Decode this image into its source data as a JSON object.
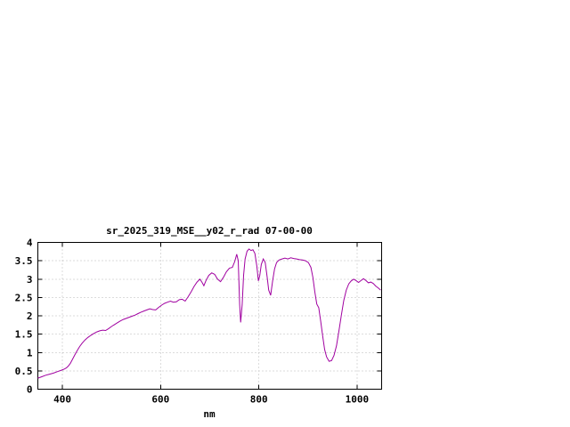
{
  "chart_data": {
    "type": "line",
    "title": "sr_2025_319_MSE__y02_r_rad 07-00-00",
    "xlabel": "nm",
    "ylabel": "",
    "xlim": [
      350,
      1050
    ],
    "ylim": [
      0,
      4
    ],
    "x_ticks": [
      400,
      600,
      800,
      1000
    ],
    "y_ticks": [
      0,
      0.5,
      1,
      1.5,
      2,
      2.5,
      3,
      3.5,
      4
    ],
    "grid": true,
    "legend_position": "none",
    "line_color": "#a000a0",
    "series": [
      {
        "x": [
          350,
          358,
          366,
          374,
          382,
          390,
          398,
          404,
          408,
          412,
          416,
          420,
          425,
          430,
          435,
          440,
          446,
          452,
          458,
          464,
          470,
          476,
          482,
          488,
          494,
          500,
          506,
          512,
          518,
          524,
          530,
          536,
          542,
          548,
          554,
          560,
          566,
          572,
          578,
          584,
          590,
          596,
          602,
          608,
          614,
          620,
          626,
          632,
          638,
          644,
          650,
          656,
          662,
          668,
          674,
          680,
          684,
          688,
          692,
          698,
          704,
          710,
          716,
          722,
          728,
          734,
          740,
          746,
          751,
          755,
          758,
          761,
          763,
          766,
          769,
          772,
          776,
          780,
          784,
          788,
          792,
          796,
          799,
          802,
          805,
          809,
          813,
          817,
          820,
          824,
          828,
          832,
          836,
          841,
          847,
          853,
          859,
          865,
          871,
          877,
          883,
          889,
          895,
          901,
          906,
          910,
          914,
          918,
          922,
          926,
          930,
          934,
          938,
          943,
          948,
          953,
          958,
          963,
          968,
          973,
          978,
          983,
          988,
          993,
          998,
          1003,
          1008,
          1013,
          1018,
          1023,
          1028,
          1033,
          1038,
          1043,
          1048
        ],
        "y": [
          0.3,
          0.34,
          0.38,
          0.41,
          0.44,
          0.48,
          0.52,
          0.55,
          0.58,
          0.63,
          0.7,
          0.8,
          0.93,
          1.05,
          1.16,
          1.25,
          1.34,
          1.41,
          1.47,
          1.52,
          1.56,
          1.59,
          1.61,
          1.6,
          1.65,
          1.71,
          1.76,
          1.81,
          1.86,
          1.9,
          1.93,
          1.96,
          1.99,
          2.02,
          2.06,
          2.1,
          2.13,
          2.16,
          2.19,
          2.17,
          2.16,
          2.23,
          2.29,
          2.34,
          2.37,
          2.4,
          2.37,
          2.38,
          2.44,
          2.45,
          2.4,
          2.52,
          2.65,
          2.8,
          2.92,
          3.0,
          2.92,
          2.82,
          2.95,
          3.1,
          3.17,
          3.13,
          3.0,
          2.93,
          3.05,
          3.2,
          3.3,
          3.32,
          3.48,
          3.68,
          3.5,
          2.3,
          1.82,
          2.3,
          3.1,
          3.55,
          3.76,
          3.82,
          3.78,
          3.8,
          3.7,
          3.35,
          2.95,
          3.1,
          3.4,
          3.55,
          3.45,
          3.05,
          2.7,
          2.56,
          2.95,
          3.28,
          3.45,
          3.52,
          3.55,
          3.57,
          3.55,
          3.58,
          3.56,
          3.55,
          3.53,
          3.52,
          3.5,
          3.45,
          3.32,
          3.05,
          2.65,
          2.32,
          2.22,
          1.85,
          1.45,
          1.08,
          0.88,
          0.76,
          0.78,
          0.92,
          1.18,
          1.58,
          2.02,
          2.42,
          2.7,
          2.87,
          2.95,
          3.0,
          2.96,
          2.91,
          2.96,
          3.01,
          2.96,
          2.9,
          2.92,
          2.88,
          2.81,
          2.76,
          2.7
        ]
      }
    ]
  },
  "colors": {
    "line": "#a000a0",
    "grid": "#b8b8b8",
    "border": "#000000",
    "background": "#ffffff",
    "text": "#000000"
  }
}
